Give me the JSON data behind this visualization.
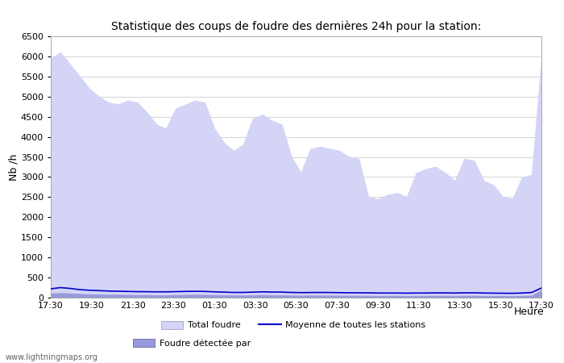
{
  "title": "Statistique des coups de foudre des dernières 24h pour la station:",
  "xlabel": "Heure",
  "ylabel": "Nb /h",
  "ylim": [
    0,
    6500
  ],
  "yticks": [
    0,
    500,
    1000,
    1500,
    2000,
    2500,
    3000,
    3500,
    4000,
    4500,
    5000,
    5500,
    6000,
    6500
  ],
  "xtick_labels": [
    "17:30",
    "19:30",
    "21:30",
    "23:30",
    "01:30",
    "03:30",
    "05:30",
    "07:30",
    "09:30",
    "11:30",
    "13:30",
    "15:30",
    "17:30"
  ],
  "fill_color_light": "#d4d4f7",
  "fill_color_dark": "#9999dd",
  "line_color": "#0000cc",
  "background_color": "#ffffff",
  "watermark": "www.lightningmaps.org",
  "legend_total": "Total foudre",
  "legend_moyenne": "Moyenne de toutes les stations",
  "legend_detectee": "Foudre détectée par",
  "total_foudre": [
    5950,
    6100,
    5800,
    5500,
    5200,
    5000,
    4850,
    4800,
    4900,
    4850,
    4600,
    4300,
    4200,
    4700,
    4800,
    4900,
    4850,
    4200,
    3850,
    3650,
    3800,
    4450,
    4550,
    4400,
    4300,
    3500,
    3100,
    3700,
    3750,
    3700,
    3650,
    3500,
    3450,
    2500,
    2450,
    2550,
    2600,
    2500,
    3100,
    3200,
    3250,
    3100,
    2900,
    3450,
    3400,
    2900,
    2800,
    2500,
    2450,
    3000,
    3050,
    5900
  ],
  "foudre_detectee": [
    100,
    110,
    100,
    90,
    80,
    75,
    70,
    70,
    65,
    60,
    60,
    55,
    55,
    60,
    65,
    70,
    68,
    60,
    55,
    52,
    52,
    55,
    60,
    55,
    55,
    50,
    48,
    50,
    50,
    48,
    48,
    45,
    42,
    42,
    40,
    40,
    40,
    38,
    40,
    40,
    42,
    42,
    40,
    42,
    42,
    40,
    38,
    38,
    36,
    40,
    45,
    180
  ],
  "moyenne": [
    220,
    250,
    230,
    200,
    185,
    175,
    165,
    160,
    155,
    150,
    148,
    145,
    145,
    150,
    155,
    158,
    155,
    145,
    138,
    130,
    130,
    138,
    145,
    140,
    138,
    130,
    125,
    128,
    130,
    128,
    125,
    122,
    120,
    120,
    115,
    115,
    115,
    112,
    115,
    115,
    118,
    118,
    115,
    120,
    120,
    115,
    112,
    110,
    108,
    115,
    130,
    240
  ]
}
